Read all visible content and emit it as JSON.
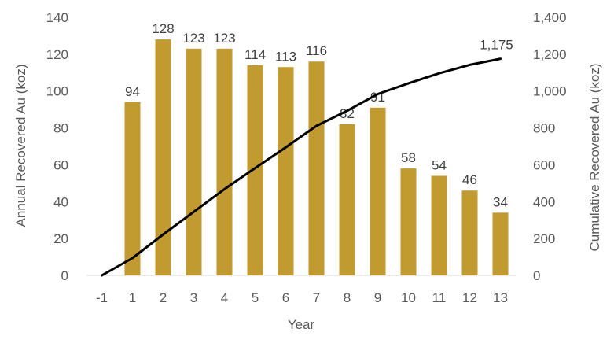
{
  "chart_data": {
    "type": "bar",
    "categories": [
      "-1",
      "1",
      "2",
      "3",
      "4",
      "5",
      "6",
      "7",
      "8",
      "9",
      "10",
      "11",
      "12",
      "13"
    ],
    "xlabel": "Year",
    "ylabel": "Annual Recovered Au (koz)",
    "y2label": "Cumulative Recovered Au (koz)",
    "ylim": [
      0,
      140
    ],
    "y2lim": [
      0,
      1400
    ],
    "yticks": [
      "0",
      "20",
      "40",
      "60",
      "80",
      "100",
      "120",
      "140"
    ],
    "y2ticks": [
      "0",
      "200",
      "400",
      "600",
      "800",
      "1,000",
      "1,200",
      "1,400"
    ],
    "grid": false,
    "legend": "none",
    "series": [
      {
        "type": "bar",
        "axis": "left",
        "color": "#c19a30",
        "values": [
          null,
          94,
          128,
          123,
          123,
          114,
          113,
          116,
          82,
          91,
          58,
          54,
          46,
          34
        ],
        "labels": [
          "",
          "94",
          "128",
          "123",
          "123",
          "114",
          "113",
          "116",
          "82",
          "91",
          "58",
          "54",
          "46",
          "34"
        ]
      },
      {
        "type": "line",
        "axis": "right",
        "color": "#000000",
        "values": [
          0,
          94,
          222,
          345,
          468,
          582,
          695,
          811,
          893,
          984,
          1042,
          1096,
          1142,
          1175
        ],
        "end_label": "1,175"
      }
    ]
  }
}
